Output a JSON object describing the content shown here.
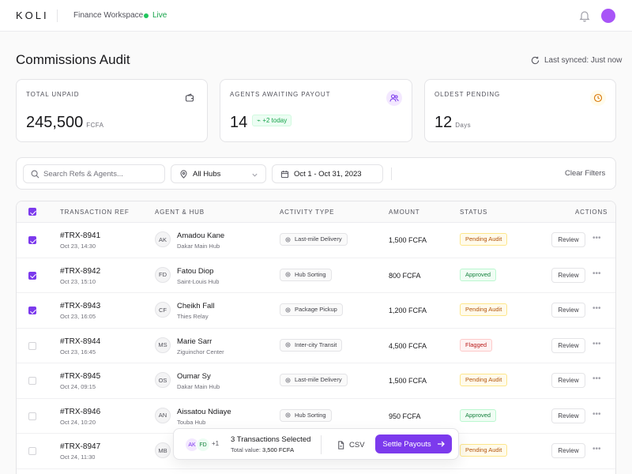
{
  "topbar": {
    "logo": "KOLI",
    "workspace": "Finance Workspace",
    "live": "Live",
    "colors": {
      "live": "#22c55e",
      "avatar": "#a855f7",
      "accent": "#7c3aed"
    }
  },
  "header": {
    "title": "Commissions Audit",
    "sync": "Last synced: Just now"
  },
  "cards": [
    {
      "label": "TOTAL UNPAID",
      "value": "245,500",
      "unit": "FCFA",
      "icon": "wallet-icon"
    },
    {
      "label": "AGENTS AWAITING PAYOUT",
      "value": "14",
      "badge": "+2 today",
      "icon": "users-icon"
    },
    {
      "label": "OLDEST PENDING",
      "value": "12",
      "unit": "Days",
      "icon": "clock-icon"
    }
  ],
  "filters": {
    "search_placeholder": "Search Refs & Agents...",
    "hub": "All Hubs",
    "date_range": "Oct 1 - Oct 31, 2023",
    "clear": "Clear Filters"
  },
  "table": {
    "columns": [
      "TRANSACTION REF",
      "AGENT & HUB",
      "ACTIVITY TYPE",
      "AMOUNT",
      "STATUS",
      "ACTIONS"
    ],
    "review_label": "Review",
    "more_label": "•••",
    "rows": [
      {
        "checked": true,
        "ref": "#TRX-8941",
        "time": "Oct 23, 14:30",
        "initials": "AK",
        "agent": "Amadou Kane",
        "hub": "Dakar Main Hub",
        "activity": "Last-mile Delivery",
        "amount": "1,500  FCFA",
        "status": "Pending Audit",
        "status_kind": "pending"
      },
      {
        "checked": true,
        "ref": "#TRX-8942",
        "time": "Oct 23, 15:10",
        "initials": "FD",
        "agent": "Fatou Diop",
        "hub": "Saint-Louis Hub",
        "activity": "Hub Sorting",
        "amount": "800 FCFA",
        "status": "Approved",
        "status_kind": "approved"
      },
      {
        "checked": true,
        "ref": "#TRX-8943",
        "time": "Oct 23, 16:05",
        "initials": "CF",
        "agent": "Cheikh Fall",
        "hub": "Thies Relay",
        "activity": "Package Pickup",
        "amount": "1,200 FCFA",
        "status": "Pending Audit",
        "status_kind": "pending"
      },
      {
        "checked": false,
        "ref": "#TRX-8944",
        "time": "Oct 23, 16:45",
        "initials": "MS",
        "agent": "Marie Sarr",
        "hub": "Ziguinchor Center",
        "activity": "Inter-city Transit",
        "amount": "4,500 FCFA",
        "status": "Flagged",
        "status_kind": "flagged"
      },
      {
        "checked": false,
        "ref": "#TRX-8945",
        "time": "Oct 24, 09:15",
        "initials": "OS",
        "agent": "Oumar Sy",
        "hub": "Dakar Main Hub",
        "activity": "Last-mile Delivery",
        "amount": "1,500  FCFA",
        "status": "Pending Audit",
        "status_kind": "pending"
      },
      {
        "checked": false,
        "ref": "#TRX-8946",
        "time": "Oct 24, 10:20",
        "initials": "AN",
        "agent": "Aissatou Ndiaye",
        "hub": "Touba Hub",
        "activity": "Hub Sorting",
        "amount": "950 FCFA",
        "status": "Approved",
        "status_kind": "approved"
      },
      {
        "checked": false,
        "ref": "#TRX-8947",
        "time": "Oct 24, 11:30",
        "initials": "MB",
        "agent": "",
        "hub": "",
        "activity": "",
        "amount": "",
        "status": "Pending Audit",
        "status_kind": "pending"
      }
    ]
  },
  "selection": {
    "avatars": [
      "AK",
      "FD"
    ],
    "more": "+1",
    "title": "3 Transactions Selected",
    "total_label": "Total value:",
    "total_value": "3,500 FCFA",
    "csv": "CSV",
    "settle": "Settle Payouts"
  }
}
